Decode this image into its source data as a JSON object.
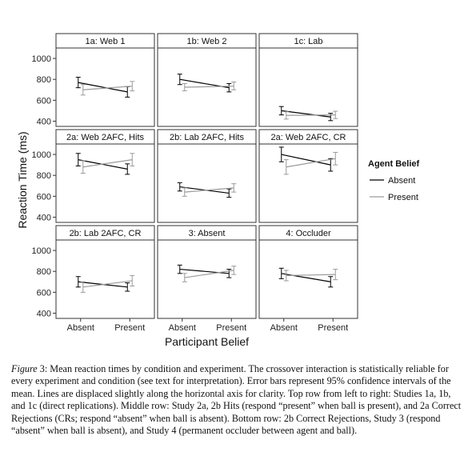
{
  "chart_data": {
    "type": "line",
    "xlabel": "Participant Belief",
    "ylabel": "Reaction Time (ms)",
    "categories": [
      "Absent",
      "Present"
    ],
    "legend": {
      "title": "Agent Belief",
      "position": "right",
      "entries": [
        {
          "name": "Absent",
          "color": "#000000"
        },
        {
          "name": "Present",
          "color": "#9a9a9a"
        }
      ]
    },
    "panel_rows": [
      {
        "yticks": [
          400,
          600,
          800,
          1000
        ],
        "ylim": [
          350,
          1100
        ]
      },
      {
        "yticks": [
          400,
          600,
          800,
          1000
        ],
        "ylim": [
          350,
          1100
        ]
      },
      {
        "yticks": [
          400,
          600,
          800,
          1000
        ],
        "ylim": [
          350,
          1100
        ]
      }
    ],
    "panels": [
      {
        "title": "1a: Web 1",
        "row": 0,
        "col": 0,
        "series": [
          {
            "name": "Absent",
            "values": [
              770,
              680
            ],
            "ci_low": [
              720,
              630
            ],
            "ci_high": [
              820,
              730
            ]
          },
          {
            "name": "Present",
            "values": [
              700,
              735
            ],
            "ci_low": [
              650,
              690
            ],
            "ci_high": [
              750,
              780
            ]
          }
        ]
      },
      {
        "title": "1b: Web 2",
        "row": 0,
        "col": 1,
        "series": [
          {
            "name": "Absent",
            "values": [
              800,
              720
            ],
            "ci_low": [
              750,
              680
            ],
            "ci_high": [
              850,
              760
            ]
          },
          {
            "name": "Present",
            "values": [
              725,
              735
            ],
            "ci_low": [
              690,
              700
            ],
            "ci_high": [
              760,
              775
            ]
          }
        ]
      },
      {
        "title": "1c: Lab",
        "row": 0,
        "col": 2,
        "series": [
          {
            "name": "Absent",
            "values": [
              500,
              440
            ],
            "ci_low": [
              460,
              405
            ],
            "ci_high": [
              540,
              475
            ]
          },
          {
            "name": "Present",
            "values": [
              455,
              460
            ],
            "ci_low": [
              420,
              425
            ],
            "ci_high": [
              490,
              495
            ]
          }
        ]
      },
      {
        "title": "2a: Web 2AFC, Hits",
        "row": 1,
        "col": 0,
        "series": [
          {
            "name": "Absent",
            "values": [
              950,
              860
            ],
            "ci_low": [
              890,
              810
            ],
            "ci_high": [
              1010,
              910
            ]
          },
          {
            "name": "Present",
            "values": [
              880,
              950
            ],
            "ci_low": [
              820,
              890
            ],
            "ci_high": [
              940,
              1010
            ]
          }
        ]
      },
      {
        "title": "2b: Lab 2AFC, Hits",
        "row": 1,
        "col": 1,
        "series": [
          {
            "name": "Absent",
            "values": [
              690,
              630
            ],
            "ci_low": [
              650,
              590
            ],
            "ci_high": [
              730,
              670
            ]
          },
          {
            "name": "Present",
            "values": [
              640,
              680
            ],
            "ci_low": [
              600,
              640
            ],
            "ci_high": [
              680,
              720
            ]
          }
        ]
      },
      {
        "title": "2a: Web 2AFC, CR",
        "row": 1,
        "col": 2,
        "series": [
          {
            "name": "Absent",
            "values": [
              1000,
              900
            ],
            "ci_low": [
              930,
              840
            ],
            "ci_high": [
              1070,
              960
            ]
          },
          {
            "name": "Present",
            "values": [
              880,
              960
            ],
            "ci_low": [
              810,
              900
            ],
            "ci_high": [
              950,
              1020
            ]
          }
        ]
      },
      {
        "title": "2b: Lab 2AFC, CR",
        "row": 2,
        "col": 0,
        "series": [
          {
            "name": "Absent",
            "values": [
              700,
              650
            ],
            "ci_low": [
              650,
              610
            ],
            "ci_high": [
              750,
              690
            ]
          },
          {
            "name": "Present",
            "values": [
              650,
              710
            ],
            "ci_low": [
              600,
              660
            ],
            "ci_high": [
              700,
              760
            ]
          }
        ]
      },
      {
        "title": "3: Absent",
        "row": 2,
        "col": 1,
        "series": [
          {
            "name": "Absent",
            "values": [
              820,
              780
            ],
            "ci_low": [
              780,
              740
            ],
            "ci_high": [
              860,
              820
            ]
          },
          {
            "name": "Present",
            "values": [
              740,
              810
            ],
            "ci_low": [
              700,
              770
            ],
            "ci_high": [
              780,
              850
            ]
          }
        ]
      },
      {
        "title": "4: Occluder",
        "row": 2,
        "col": 2,
        "series": [
          {
            "name": "Absent",
            "values": [
              780,
              700
            ],
            "ci_low": [
              730,
              650
            ],
            "ci_high": [
              830,
              750
            ]
          },
          {
            "name": "Present",
            "values": [
              760,
              770
            ],
            "ci_low": [
              710,
              720
            ],
            "ci_high": [
              810,
              820
            ]
          }
        ]
      }
    ]
  },
  "caption": {
    "label": "Figure",
    "number_text": " 3",
    "text": ": Mean reaction times by condition and experiment. The crossover interaction is statistically reliable for every experiment and condition (see text for interpretation). Error bars represent 95% confidence intervals of the mean. Lines are displaced slightly along the horizontal axis for clarity. Top row from left to right: Studies 1a, 1b, and 1c (direct replications). Middle row: Study 2a, 2b Hits (respond “present” when ball is present), and 2a Correct Rejections (CRs; respond “absent” when ball is absent). Bottom row: 2b Correct Rejections, Study 3 (respond “absent” when ball is absent), and Study 4 (permanent occluder between agent and ball)."
  }
}
